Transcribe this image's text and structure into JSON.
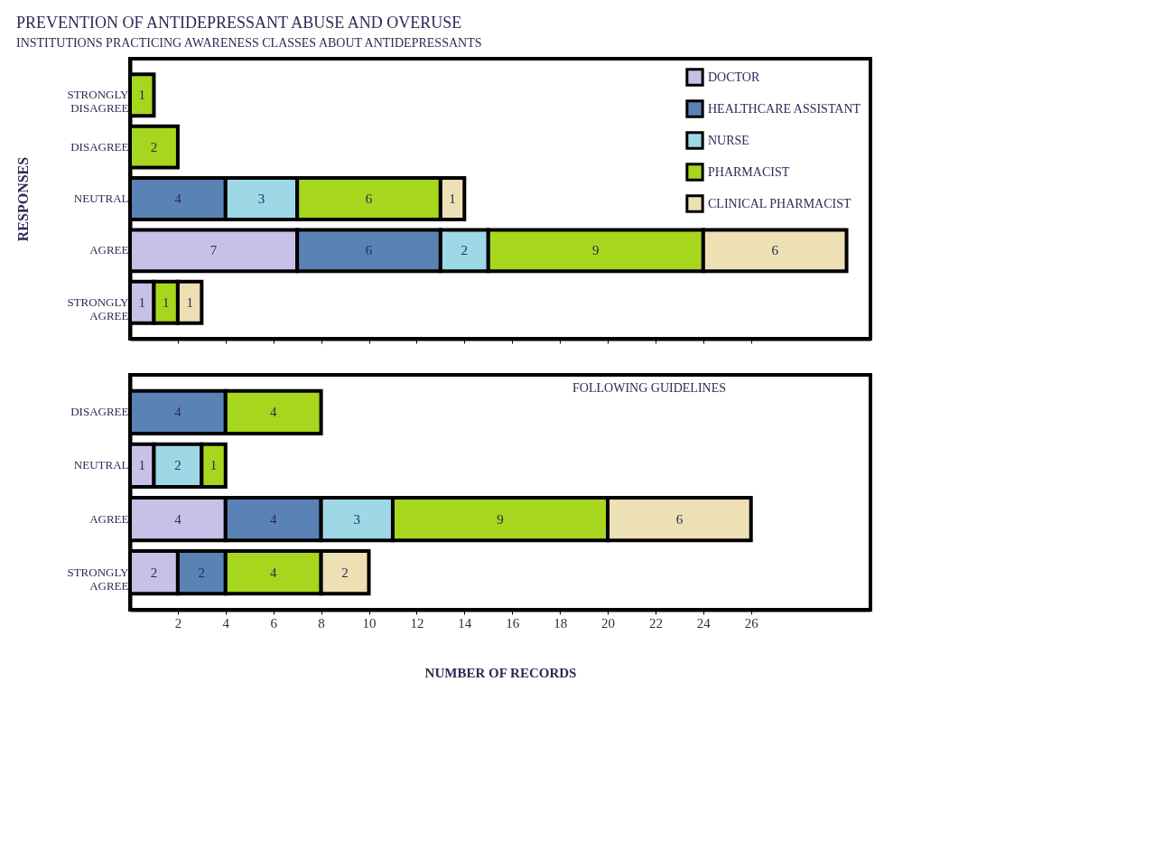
{
  "chart_data": [
    {
      "type": "bar",
      "orientation": "horizontal",
      "stacked": true,
      "title": "PREVENTION OF ANTIDEPRESSANT ABUSE AND OVERUSE",
      "subtitle": "INSTITUTIONS PRACTICING AWARENESS CLASSES ABOUT ANTIDEPRESSANTS",
      "ylabel": "RESPONSES",
      "categories": [
        "STRONGLY DISAGREE",
        "DISAGREE",
        "NEUTRAL",
        "AGREE",
        "STRONGLY AGREE"
      ],
      "series": [
        {
          "name": "DOCTOR",
          "color": "#c9c0e8",
          "values": [
            null,
            null,
            null,
            7,
            1
          ]
        },
        {
          "name": "HEALTHCARE ASSISTANT",
          "color": "#5b82b5",
          "values": [
            null,
            null,
            4,
            6,
            null
          ]
        },
        {
          "name": "NURSE",
          "color": "#9ed8e6",
          "values": [
            null,
            null,
            3,
            2,
            null
          ]
        },
        {
          "name": "PHARMACIST",
          "color": "#a6d61e",
          "values": [
            1,
            2,
            6,
            9,
            1
          ]
        },
        {
          "name": "CLINICAL PHARMACIST",
          "color": "#ede0b4",
          "values": [
            null,
            null,
            1,
            6,
            1
          ]
        }
      ],
      "xlim": [
        0,
        31
      ],
      "xticks": [
        2,
        4,
        6,
        8,
        10,
        12,
        14,
        16,
        18,
        20,
        22,
        24,
        26
      ],
      "tick_labels": "y",
      "data_labels": true,
      "grid": false,
      "legend": "top right"
    },
    {
      "type": "bar",
      "orientation": "horizontal",
      "stacked": true,
      "subtitle": "FOLLOWING GUIDELINES",
      "xlabel": "NUMBER OF RECORDS",
      "categories": [
        "DISAGREE",
        "NEUTRAL",
        "AGREE",
        "STRONGLY AGREE"
      ],
      "series": [
        {
          "color": "#c9c0e8",
          "values": [
            null,
            1,
            4,
            2
          ]
        },
        {
          "color": "#5b82b5",
          "values": [
            4,
            null,
            4,
            2
          ]
        },
        {
          "color": "#9ed8e6",
          "values": [
            null,
            2,
            3,
            null
          ]
        },
        {
          "color": "#a6d61e",
          "values": [
            4,
            1,
            9,
            4
          ]
        },
        {
          "color": "#ede0b4",
          "values": [
            null,
            null,
            6,
            2
          ]
        }
      ],
      "xlim": [
        0,
        31
      ],
      "xticks": [
        2,
        4,
        6,
        8,
        10,
        12,
        14,
        16,
        18,
        20,
        22,
        24,
        26
      ],
      "data_labels": true,
      "grid": false,
      "legend": false
    }
  ]
}
